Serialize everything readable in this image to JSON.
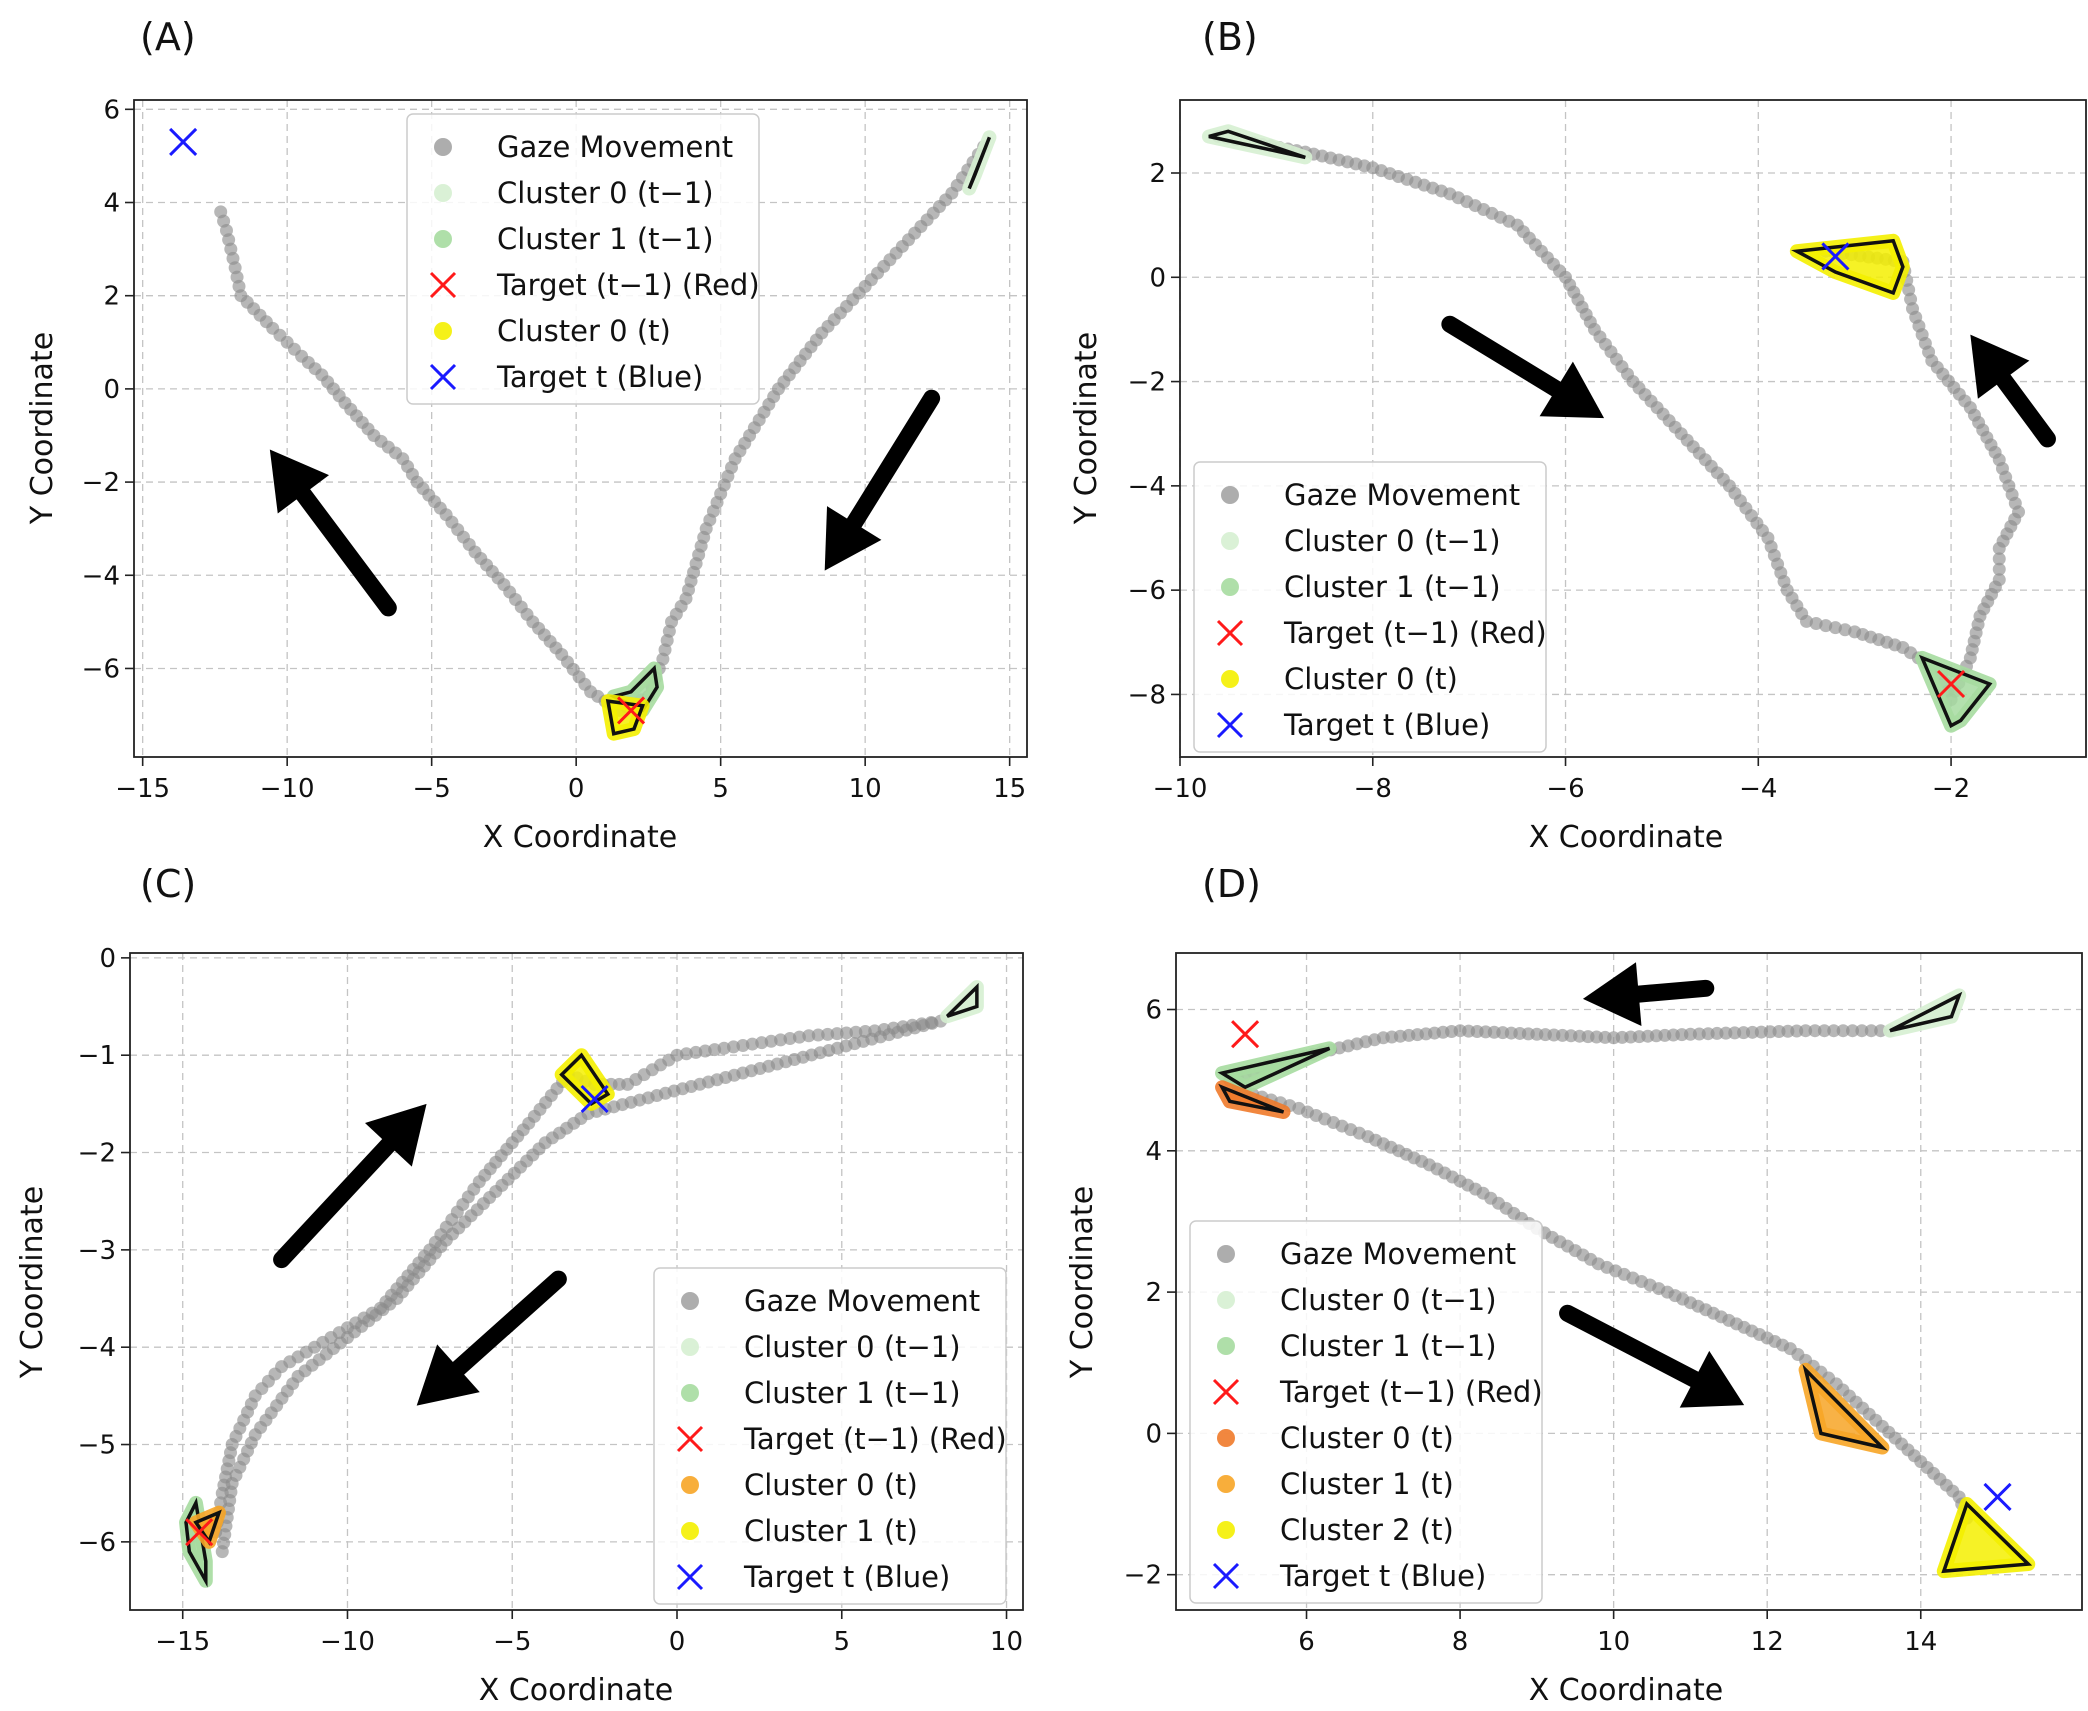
{
  "figure": {
    "xlabel": "X Coordinate",
    "ylabel": "Y Coordinate"
  },
  "colors": {
    "gaze": "#8a8a8a",
    "cluster0_prev": "#d6efd2",
    "cluster1_prev": "#a6dba0",
    "yellow": "#f4f000",
    "orange_dark": "#f07a2a",
    "orange": "#f7a526",
    "target_prev": "#ff1a1a",
    "target_t": "#1a1aff",
    "arrow": "#000000"
  },
  "chart_data": [
    {
      "panel": "(A)",
      "type": "scatter",
      "xlabel": "X Coordinate",
      "ylabel": "Y Coordinate",
      "xlim": [
        -15.3,
        15.6
      ],
      "ylim": [
        -7.9,
        6.2
      ],
      "xticks": [
        -15,
        -10,
        -5,
        0,
        5,
        10,
        15
      ],
      "yticks": [
        -6,
        -4,
        -2,
        0,
        2,
        4,
        6
      ],
      "grid": true,
      "legend_position": "top-center",
      "legend": [
        {
          "label": "Gaze Movement",
          "kind": "dot",
          "color": "#8a8a8a"
        },
        {
          "label": "Cluster 0 (t−1)",
          "kind": "dot",
          "color": "#d6efd2"
        },
        {
          "label": "Cluster 1 (t−1)",
          "kind": "dot",
          "color": "#a6dba0"
        },
        {
          "label": "Target (t−1) (Red)",
          "kind": "x",
          "color": "#ff1a1a"
        },
        {
          "label": "Cluster 0 (t)",
          "kind": "dot",
          "color": "#f4f000"
        },
        {
          "label": "Target t (Blue)",
          "kind": "x",
          "color": "#1a1aff"
        }
      ],
      "gaze_path": [
        [
          -12.3,
          3.8
        ],
        [
          -12.1,
          3.4
        ],
        [
          -11.8,
          2.6
        ],
        [
          -11.6,
          2.0
        ],
        [
          -10.5,
          1.3
        ],
        [
          -9.5,
          0.7
        ],
        [
          -8.8,
          0.3
        ],
        [
          -8.0,
          -0.3
        ],
        [
          -7.0,
          -1.0
        ],
        [
          -6.0,
          -1.5
        ],
        [
          -5.5,
          -2.0
        ],
        [
          -4.5,
          -2.7
        ],
        [
          -3.5,
          -3.5
        ],
        [
          -2.5,
          -4.2
        ],
        [
          -1.5,
          -5.0
        ],
        [
          -0.5,
          -5.7
        ],
        [
          0.5,
          -6.5
        ],
        [
          1.5,
          -6.9
        ],
        [
          2.5,
          -6.6
        ],
        [
          3.0,
          -5.8
        ],
        [
          3.3,
          -5.0
        ],
        [
          3.8,
          -4.5
        ],
        [
          4.5,
          -3.0
        ],
        [
          5.5,
          -1.5
        ],
        [
          7.0,
          0.0
        ],
        [
          8.5,
          1.2
        ],
        [
          10.0,
          2.2
        ],
        [
          11.5,
          3.2
        ],
        [
          13.0,
          4.2
        ],
        [
          14.1,
          5.2
        ]
      ],
      "clusters": [
        {
          "label": "Cluster 0 (t−1)",
          "color": "#d6efd2",
          "hull": [
            [
              13.6,
              4.3
            ],
            [
              14.3,
              5.4
            ],
            [
              13.8,
              4.6
            ]
          ]
        },
        {
          "label": "Cluster 1 (t−1)",
          "color": "#a6dba0",
          "hull": [
            [
              1.3,
              -6.6
            ],
            [
              2.3,
              -6.9
            ],
            [
              2.8,
              -6.4
            ],
            [
              2.7,
              -6.0
            ],
            [
              1.9,
              -6.5
            ]
          ]
        },
        {
          "label": "Cluster 0 (t)",
          "color": "#f4f000",
          "hull": [
            [
              1.1,
              -6.7
            ],
            [
              2.3,
              -6.8
            ],
            [
              2.0,
              -7.3
            ],
            [
              1.3,
              -7.4
            ]
          ]
        }
      ],
      "targets": [
        {
          "label": "Target (t−1) (Red)",
          "color": "#ff1a1a",
          "x": 1.9,
          "y": -6.9
        },
        {
          "label": "Target t (Blue)",
          "color": "#1a1aff",
          "x": -13.6,
          "y": 5.3
        }
      ],
      "arrows": [
        {
          "from": [
            -6.5,
            -4.7
          ],
          "to": [
            -10.6,
            -1.3
          ]
        },
        {
          "from": [
            12.3,
            -0.2
          ],
          "to": [
            8.6,
            -3.9
          ]
        }
      ]
    },
    {
      "panel": "(B)",
      "type": "scatter",
      "xlabel": "X Coordinate",
      "ylabel": "Y Coordinate",
      "xlim": [
        -10.0,
        -0.6
      ],
      "ylim": [
        -9.2,
        3.4
      ],
      "xticks": [
        -10,
        -8,
        -6,
        -4,
        -2
      ],
      "yticks": [
        -8,
        -6,
        -4,
        -2,
        0,
        2
      ],
      "grid": true,
      "legend_position": "bottom-left",
      "legend": [
        {
          "label": "Gaze Movement",
          "kind": "dot",
          "color": "#8a8a8a"
        },
        {
          "label": "Cluster 0 (t−1)",
          "kind": "dot",
          "color": "#d6efd2"
        },
        {
          "label": "Cluster 1 (t−1)",
          "kind": "dot",
          "color": "#a6dba0"
        },
        {
          "label": "Target (t−1) (Red)",
          "kind": "x",
          "color": "#ff1a1a"
        },
        {
          "label": "Cluster 0 (t)",
          "kind": "dot",
          "color": "#f4f000"
        },
        {
          "label": "Target t (Blue)",
          "kind": "x",
          "color": "#1a1aff"
        }
      ],
      "gaze_path": [
        [
          -9.6,
          2.7
        ],
        [
          -8.7,
          2.4
        ],
        [
          -8.0,
          2.1
        ],
        [
          -7.2,
          1.6
        ],
        [
          -6.5,
          1.0
        ],
        [
          -6.0,
          0.0
        ],
        [
          -5.7,
          -1.0
        ],
        [
          -5.3,
          -2.0
        ],
        [
          -4.8,
          -3.0
        ],
        [
          -4.3,
          -4.0
        ],
        [
          -3.9,
          -5.0
        ],
        [
          -3.7,
          -6.0
        ],
        [
          -3.5,
          -6.6
        ],
        [
          -3.0,
          -6.8
        ],
        [
          -2.5,
          -7.1
        ],
        [
          -2.1,
          -7.6
        ],
        [
          -2.0,
          -8.1
        ],
        [
          -1.8,
          -7.3
        ],
        [
          -1.7,
          -6.5
        ],
        [
          -1.5,
          -5.8
        ],
        [
          -1.5,
          -5.2
        ],
        [
          -1.3,
          -4.5
        ],
        [
          -1.5,
          -3.5
        ],
        [
          -1.8,
          -2.5
        ],
        [
          -2.2,
          -1.6
        ],
        [
          -2.4,
          -0.6
        ],
        [
          -2.5,
          0.3
        ],
        [
          -3.3,
          0.5
        ]
      ],
      "clusters": [
        {
          "label": "Cluster 0 (t−1)",
          "color": "#d6efd2",
          "hull": [
            [
              -9.7,
              2.7
            ],
            [
              -8.7,
              2.3
            ],
            [
              -9.5,
              2.8
            ]
          ]
        },
        {
          "label": "Cluster 1 (t−1)",
          "color": "#a6dba0",
          "hull": [
            [
              -2.3,
              -7.3
            ],
            [
              -1.6,
              -7.8
            ],
            [
              -1.9,
              -8.5
            ],
            [
              -2.0,
              -8.6
            ]
          ]
        },
        {
          "label": "Cluster 0 (t)",
          "color": "#f4f000",
          "hull": [
            [
              -3.6,
              0.5
            ],
            [
              -2.6,
              0.7
            ],
            [
              -2.5,
              0.2
            ],
            [
              -2.6,
              -0.3
            ],
            [
              -3.2,
              0.1
            ]
          ]
        }
      ],
      "targets": [
        {
          "label": "Target (t−1) (Red)",
          "color": "#ff1a1a",
          "x": -2.0,
          "y": -7.8
        },
        {
          "label": "Target t (Blue)",
          "color": "#1a1aff",
          "x": -3.2,
          "y": 0.4
        }
      ],
      "arrows": [
        {
          "from": [
            -7.2,
            -0.9
          ],
          "to": [
            -5.6,
            -2.7
          ]
        },
        {
          "from": [
            -1.0,
            -3.1
          ],
          "to": [
            -1.8,
            -1.1
          ]
        }
      ]
    },
    {
      "panel": "(C)",
      "type": "scatter",
      "xlabel": "X Coordinate",
      "ylabel": "Y Coordinate",
      "xlim": [
        -16.6,
        10.5
      ],
      "ylim": [
        -6.7,
        0.05
      ],
      "xticks": [
        -15,
        -10,
        -5,
        0,
        5,
        10
      ],
      "yticks": [
        -6,
        -5,
        -4,
        -3,
        -2,
        -1,
        0
      ],
      "grid": true,
      "legend_position": "bottom-right",
      "legend": [
        {
          "label": "Gaze Movement",
          "kind": "dot",
          "color": "#8a8a8a"
        },
        {
          "label": "Cluster 0 (t−1)",
          "kind": "dot",
          "color": "#d6efd2"
        },
        {
          "label": "Cluster 1 (t−1)",
          "kind": "dot",
          "color": "#a6dba0"
        },
        {
          "label": "Target (t−1) (Red)",
          "kind": "x",
          "color": "#ff1a1a"
        },
        {
          "label": "Cluster 0 (t)",
          "kind": "dot",
          "color": "#f7a526"
        },
        {
          "label": "Cluster 1 (t)",
          "kind": "dot",
          "color": "#f4f000"
        },
        {
          "label": "Target t (Blue)",
          "kind": "x",
          "color": "#1a1aff"
        }
      ],
      "gaze_path": [
        [
          -14.0,
          -5.9
        ],
        [
          -13.8,
          -5.5
        ],
        [
          -13.5,
          -5.0
        ],
        [
          -12.8,
          -4.5
        ],
        [
          -12.0,
          -4.2
        ],
        [
          -10.5,
          -3.9
        ],
        [
          -9.0,
          -3.6
        ],
        [
          -7.5,
          -3.0
        ],
        [
          -6.0,
          -2.3
        ],
        [
          -4.5,
          -1.7
        ],
        [
          -3.3,
          -1.2
        ],
        [
          -2.5,
          -1.3
        ],
        [
          -1.5,
          -1.3
        ],
        [
          0.0,
          -1.0
        ],
        [
          2.0,
          -0.9
        ],
        [
          4.0,
          -0.8
        ],
        [
          6.0,
          -0.75
        ],
        [
          8.0,
          -0.65
        ],
        [
          -2.7,
          -1.6
        ],
        [
          -4.0,
          -1.9
        ],
        [
          -5.5,
          -2.4
        ],
        [
          -7.0,
          -2.9
        ],
        [
          -8.5,
          -3.5
        ],
        [
          -10.0,
          -3.9
        ],
        [
          -11.5,
          -4.3
        ],
        [
          -12.8,
          -4.9
        ],
        [
          -13.5,
          -5.4
        ],
        [
          -13.8,
          -6.1
        ]
      ],
      "clusters": [
        {
          "label": "Cluster 0 (t−1)",
          "color": "#d6efd2",
          "hull": [
            [
              8.2,
              -0.6
            ],
            [
              9.1,
              -0.3
            ],
            [
              9.1,
              -0.5
            ]
          ]
        },
        {
          "label": "Cluster 1 (t−1)",
          "color": "#a6dba0",
          "hull": [
            [
              -14.9,
              -5.8
            ],
            [
              -14.6,
              -5.6
            ],
            [
              -14.3,
              -6.2
            ],
            [
              -14.3,
              -6.4
            ],
            [
              -14.8,
              -6.1
            ]
          ]
        },
        {
          "label": "Cluster 0 (t)",
          "color": "#f7a526",
          "hull": [
            [
              -14.6,
              -5.8
            ],
            [
              -13.9,
              -5.7
            ],
            [
              -14.2,
              -6.0
            ]
          ]
        },
        {
          "label": "Cluster 1 (t)",
          "color": "#f4f000",
          "hull": [
            [
              -3.5,
              -1.2
            ],
            [
              -2.9,
              -1.0
            ],
            [
              -2.1,
              -1.4
            ],
            [
              -2.6,
              -1.5
            ]
          ]
        }
      ],
      "targets": [
        {
          "label": "Target (t−1) (Red)",
          "color": "#ff1a1a",
          "x": -14.5,
          "y": -5.9
        },
        {
          "label": "Target t (Blue)",
          "color": "#1a1aff",
          "x": -2.5,
          "y": -1.45
        }
      ],
      "arrows": [
        {
          "from": [
            -12.0,
            -3.1
          ],
          "to": [
            -7.6,
            -1.5
          ]
        },
        {
          "from": [
            -3.6,
            -3.3
          ],
          "to": [
            -7.9,
            -4.6
          ]
        }
      ]
    },
    {
      "panel": "(D)",
      "type": "scatter",
      "xlabel": "X Coordinate",
      "ylabel": "Y Coordinate",
      "xlim": [
        4.3,
        16.1
      ],
      "ylim": [
        -2.5,
        6.8
      ],
      "xticks": [
        6,
        8,
        10,
        12,
        14
      ],
      "yticks": [
        -2,
        0,
        2,
        4,
        6
      ],
      "grid": true,
      "legend_position": "bottom-left",
      "legend": [
        {
          "label": "Gaze Movement",
          "kind": "dot",
          "color": "#8a8a8a"
        },
        {
          "label": "Cluster 0 (t−1)",
          "kind": "dot",
          "color": "#d6efd2"
        },
        {
          "label": "Cluster 1 (t−1)",
          "kind": "dot",
          "color": "#a6dba0"
        },
        {
          "label": "Target (t−1) (Red)",
          "kind": "x",
          "color": "#ff1a1a"
        },
        {
          "label": "Cluster 0 (t)",
          "kind": "dot",
          "color": "#f07a2a"
        },
        {
          "label": "Cluster 1 (t)",
          "kind": "dot",
          "color": "#f7a526"
        },
        {
          "label": "Cluster 2 (t)",
          "kind": "dot",
          "color": "#f4f000"
        },
        {
          "label": "Target t (Blue)",
          "kind": "x",
          "color": "#1a1aff"
        }
      ],
      "gaze_path": [
        [
          13.6,
          5.7
        ],
        [
          12.5,
          5.7
        ],
        [
          11.0,
          5.65
        ],
        [
          10.0,
          5.6
        ],
        [
          9.0,
          5.65
        ],
        [
          8.0,
          5.7
        ],
        [
          7.0,
          5.6
        ],
        [
          6.2,
          5.4
        ],
        [
          5.5,
          5.2
        ],
        [
          5.0,
          5.0
        ],
        [
          5.3,
          4.8
        ],
        [
          5.9,
          4.6
        ],
        [
          6.8,
          4.2
        ],
        [
          7.6,
          3.8
        ],
        [
          8.3,
          3.4
        ],
        [
          9.0,
          2.9
        ],
        [
          9.8,
          2.4
        ],
        [
          10.7,
          2.0
        ],
        [
          11.5,
          1.6
        ],
        [
          12.3,
          1.2
        ],
        [
          12.9,
          0.7
        ],
        [
          13.5,
          0.1
        ],
        [
          14.0,
          -0.4
        ],
        [
          14.5,
          -0.9
        ],
        [
          14.6,
          -1.2
        ]
      ],
      "clusters": [
        {
          "label": "Cluster 0 (t−1)",
          "color": "#d6efd2",
          "hull": [
            [
              13.6,
              5.7
            ],
            [
              14.5,
              6.2
            ],
            [
              14.4,
              5.9
            ]
          ]
        },
        {
          "label": "Cluster 1 (t−1)",
          "color": "#a6dba0",
          "hull": [
            [
              4.9,
              5.1
            ],
            [
              6.3,
              5.45
            ],
            [
              5.2,
              4.9
            ]
          ]
        },
        {
          "label": "Cluster 0 (t)",
          "color": "#f07a2a",
          "hull": [
            [
              4.9,
              4.9
            ],
            [
              5.7,
              4.55
            ],
            [
              5.0,
              4.7
            ]
          ]
        },
        {
          "label": "Cluster 1 (t)",
          "color": "#f7a526",
          "hull": [
            [
              12.5,
              0.9
            ],
            [
              13.5,
              -0.2
            ],
            [
              12.7,
              0.0
            ]
          ]
        },
        {
          "label": "Cluster 2 (t)",
          "color": "#f4f000",
          "hull": [
            [
              14.6,
              -1.0
            ],
            [
              15.4,
              -1.85
            ],
            [
              14.3,
              -1.95
            ]
          ]
        }
      ],
      "targets": [
        {
          "label": "Target (t−1) (Red)",
          "color": "#ff1a1a",
          "x": 5.2,
          "y": 5.65
        },
        {
          "label": "Target t (Blue)",
          "color": "#1a1aff",
          "x": 15.0,
          "y": -0.9
        }
      ],
      "arrows": [
        {
          "from": [
            11.2,
            6.3
          ],
          "to": [
            9.6,
            6.15
          ]
        },
        {
          "from": [
            9.4,
            1.7
          ],
          "to": [
            11.7,
            0.4
          ]
        }
      ]
    }
  ]
}
